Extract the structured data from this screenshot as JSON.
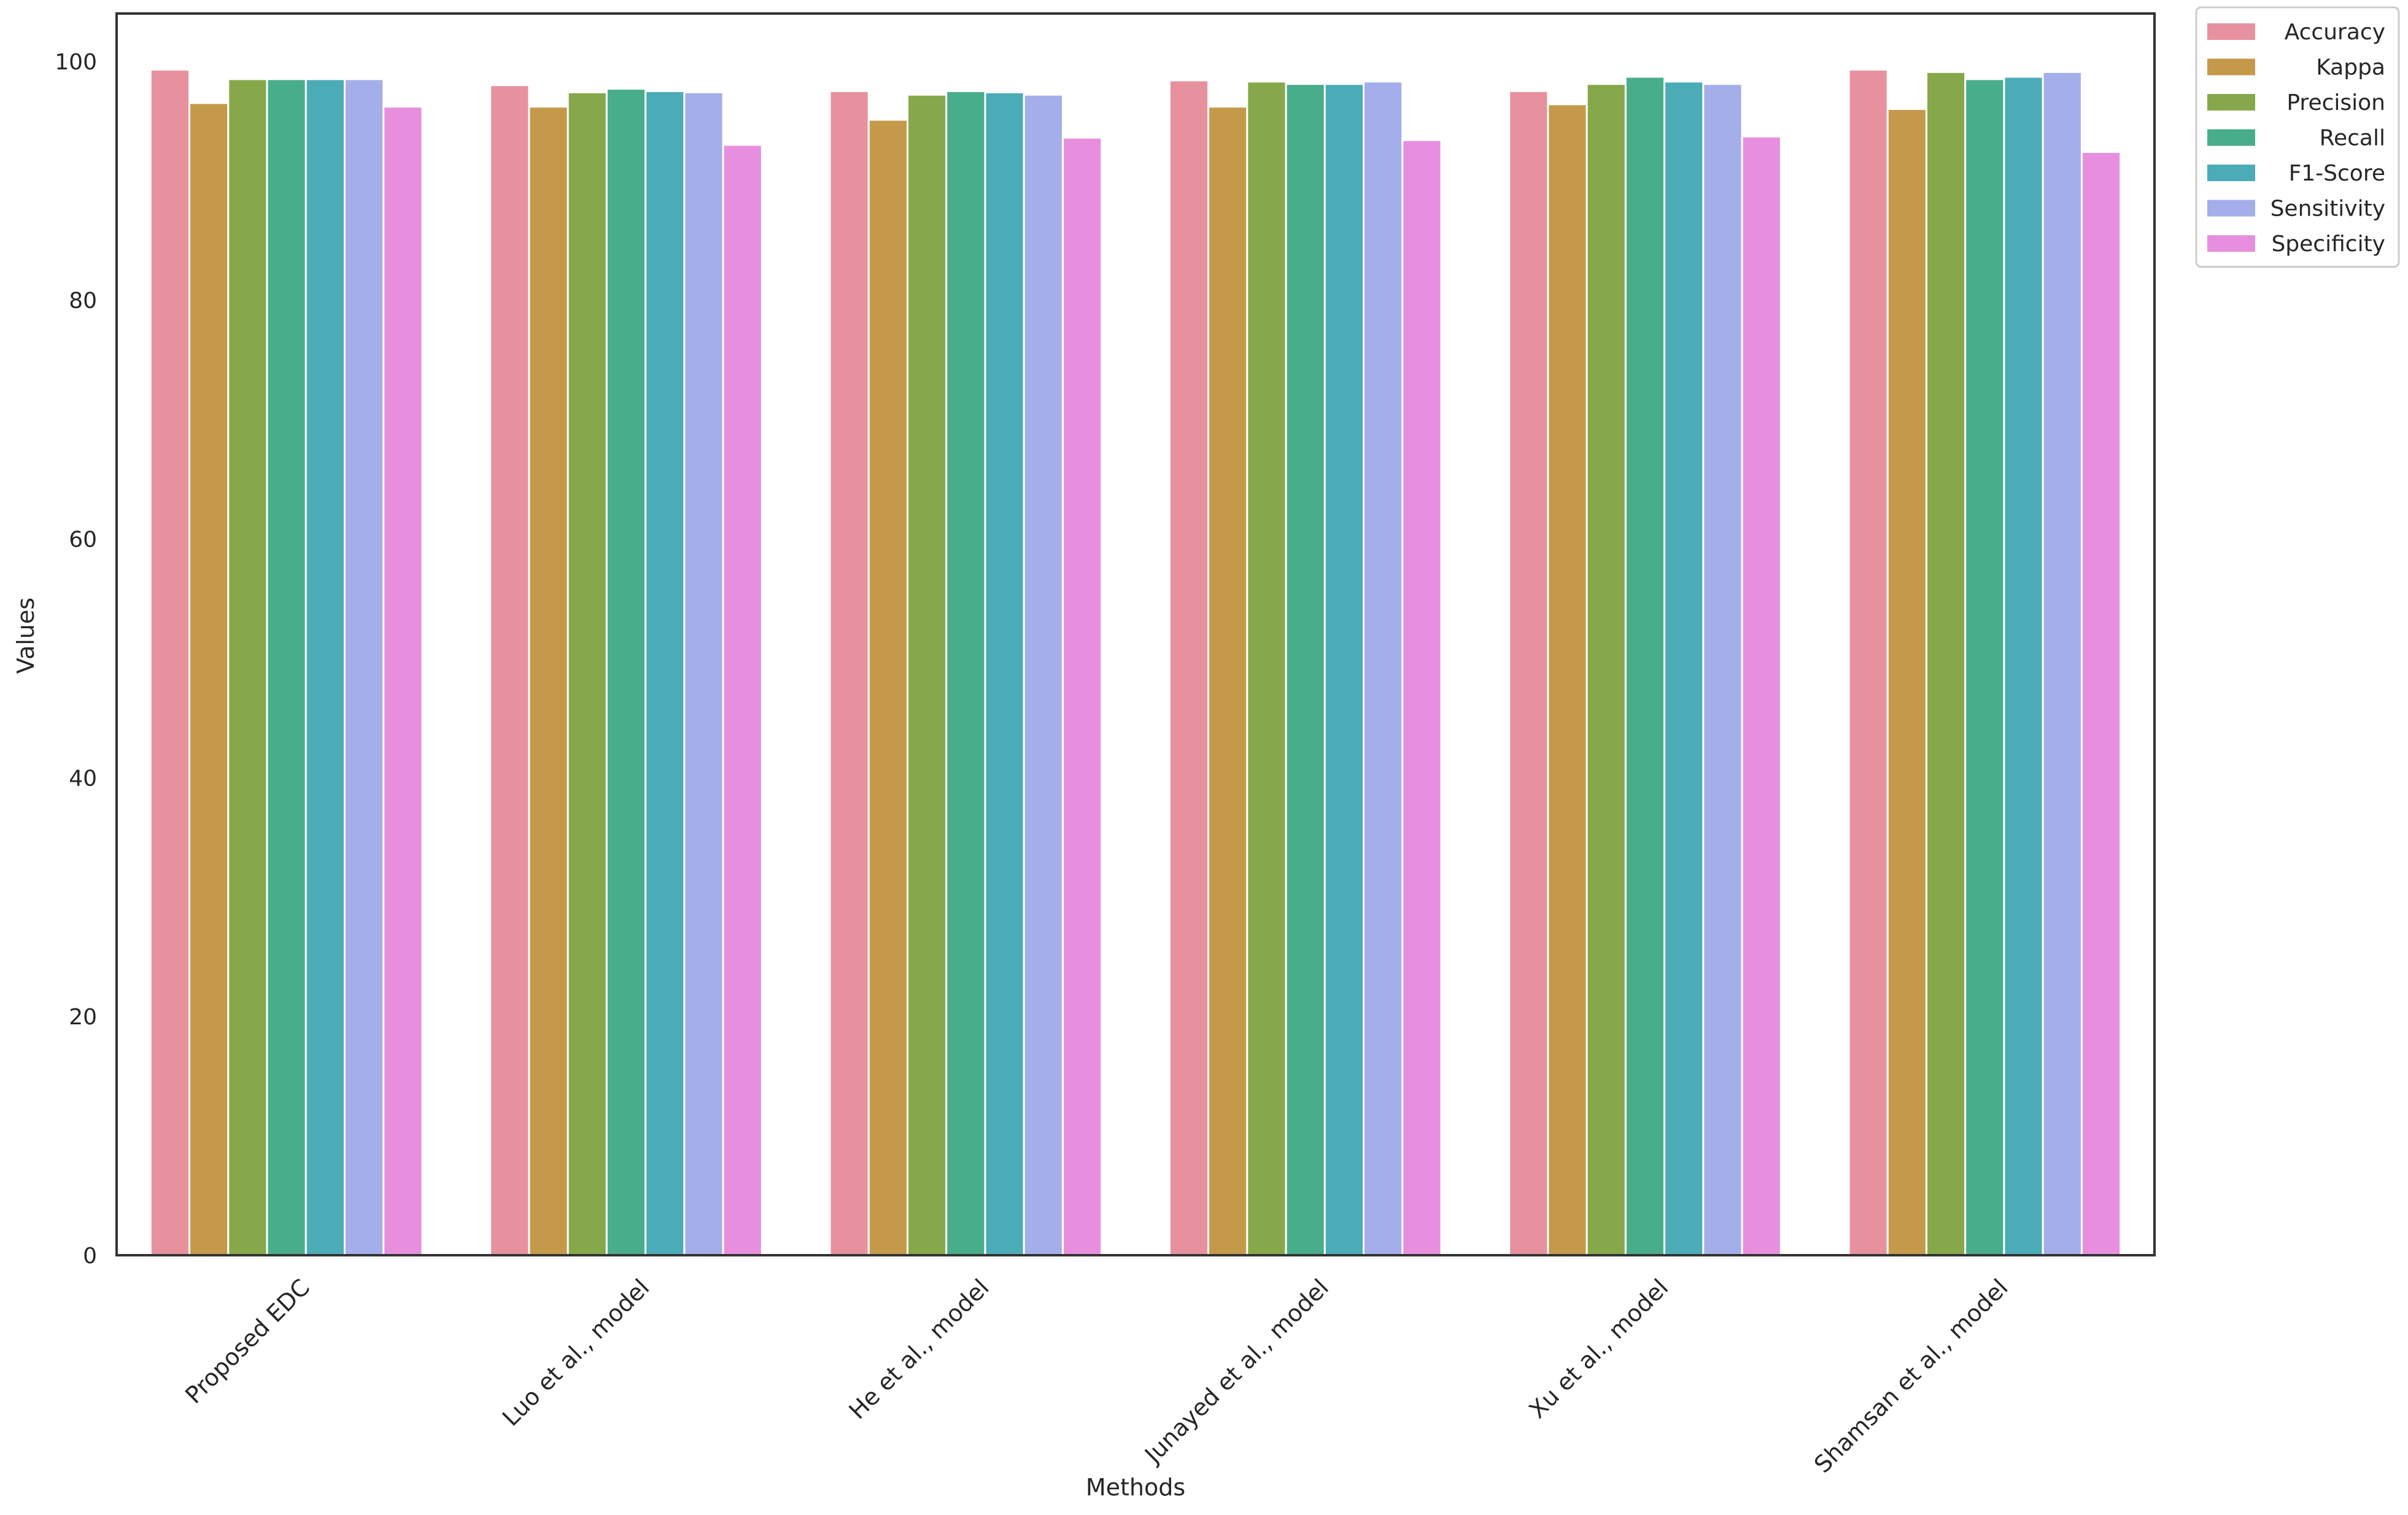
{
  "chart_data": {
    "type": "bar",
    "title": "",
    "xlabel": "Methods",
    "ylabel": "Values",
    "ylim": [
      0,
      104
    ],
    "yticks": [
      0,
      20,
      40,
      60,
      80,
      100
    ],
    "grid": false,
    "legend_position": "outside-top-right",
    "categories": [
      "Proposed EDC",
      "Luo et al., model",
      "He et al., model",
      "Junayed et al., model",
      "Xu et al., model",
      "Shamsan et al., model"
    ],
    "series": [
      {
        "name": "Accuracy",
        "color": "#e8919e",
        "values": [
          99.3,
          98.0,
          97.5,
          98.4,
          97.5,
          99.3
        ]
      },
      {
        "name": "Kappa",
        "color": "#c49a4a",
        "values": [
          96.5,
          96.2,
          95.1,
          96.2,
          96.4,
          96.0
        ]
      },
      {
        "name": "Precision",
        "color": "#86a84a",
        "values": [
          98.5,
          97.4,
          97.2,
          98.3,
          98.1,
          99.1
        ]
      },
      {
        "name": "Recall",
        "color": "#48ad8a",
        "values": [
          98.5,
          97.7,
          97.5,
          98.1,
          98.7,
          98.5
        ]
      },
      {
        "name": "F1-Score",
        "color": "#4bacb8",
        "values": [
          98.5,
          97.5,
          97.4,
          98.1,
          98.3,
          98.7
        ]
      },
      {
        "name": "Sensitivity",
        "color": "#a3aeea",
        "values": [
          98.5,
          97.4,
          97.2,
          98.3,
          98.1,
          99.1
        ]
      },
      {
        "name": "Specificity",
        "color": "#e78fde",
        "values": [
          96.2,
          93.0,
          93.6,
          93.4,
          93.7,
          92.4
        ]
      }
    ]
  }
}
